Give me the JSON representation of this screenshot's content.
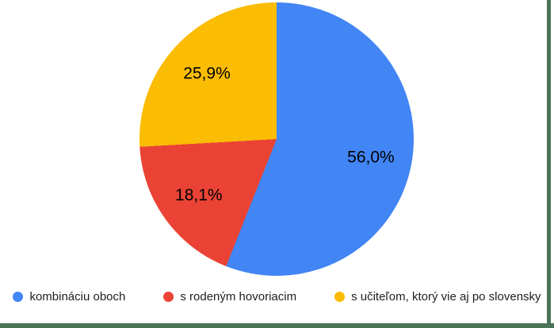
{
  "chart_data": {
    "type": "pie",
    "title": "",
    "categories": [
      "kombináciu oboch",
      "s rodeným hovoriacim",
      "s učiteľom, ktorý vie aj po slovensky"
    ],
    "values": [
      56.0,
      18.1,
      25.9
    ],
    "value_labels": [
      "56,0%",
      "18,1%",
      "25,9%"
    ],
    "colors": [
      "#4285f4",
      "#ea4335",
      "#fbbc04"
    ],
    "start_angle_deg": 0,
    "direction": "clockwise",
    "legend_position": "bottom",
    "value_label_color": "#000000",
    "legend_text_color": "#212121",
    "background_color": "#ffffff"
  },
  "frame": {
    "accent_border_color": "#4b7355"
  }
}
